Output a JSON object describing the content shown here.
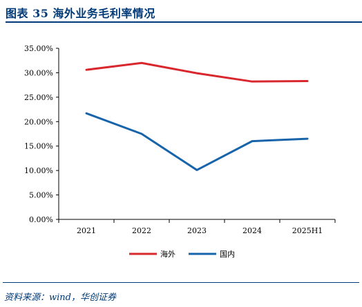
{
  "header": {
    "title": "图表 35    海外业务毛利率情况"
  },
  "footer": {
    "source": "资料来源：wind，华创证券"
  },
  "colors": {
    "accent": "#003a78",
    "overseas": "#d9272e",
    "domestic": "#1764ab",
    "axis": "#000000"
  },
  "chart_data": {
    "type": "line",
    "title": "",
    "xlabel": "",
    "ylabel": "",
    "categories": [
      "2021",
      "2022",
      "2023",
      "2024",
      "2025H1"
    ],
    "ylim": [
      0,
      0.35
    ],
    "yticks": [
      0,
      0.05,
      0.1,
      0.15,
      0.2,
      0.25,
      0.3,
      0.35
    ],
    "ytick_labels": [
      "0.00%",
      "5.00%",
      "10.00%",
      "15.00%",
      "20.00%",
      "25.00%",
      "30.00%",
      "35.00%"
    ],
    "grid": false,
    "legend_position": "bottom-center",
    "series": [
      {
        "name": "海外",
        "color": "#d9272e",
        "values": [
          0.306,
          0.32,
          0.299,
          0.282,
          0.283
        ]
      },
      {
        "name": "国内",
        "color": "#1764ab",
        "values": [
          0.217,
          0.175,
          0.101,
          0.16,
          0.165
        ]
      }
    ]
  }
}
